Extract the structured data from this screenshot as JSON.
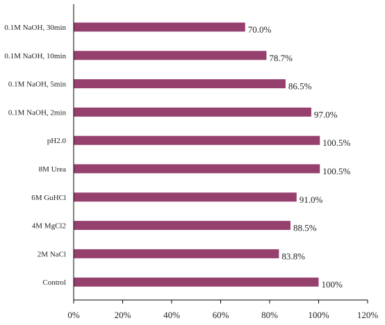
{
  "chart_data": {
    "type": "bar",
    "orientation": "horizontal",
    "categories": [
      "0.1M NaOH, 30min",
      "0.1M NaOH, 10min",
      "0.1M NaOH, 5min",
      "0.1M NaOH, 2min",
      "pH2.0",
      "8M Urea",
      "6M GuHCl",
      "4M MgCl2",
      "2M NaCl",
      "Control"
    ],
    "values": [
      70.0,
      78.7,
      86.5,
      97.0,
      100.5,
      100.5,
      91.0,
      88.5,
      83.8,
      100
    ],
    "value_labels": [
      "70.0%",
      "78.7%",
      "86.5%",
      "97.0%",
      "100.5%",
      "100.5%",
      "91.0%",
      "88.5%",
      "83.8%",
      "100%"
    ],
    "x_ticks": [
      "0%",
      "20%",
      "40%",
      "60%",
      "80%",
      "100%",
      "120%"
    ],
    "xlim": [
      0,
      120
    ],
    "bar_color": "#96406e",
    "grid": false,
    "legend": "none"
  }
}
